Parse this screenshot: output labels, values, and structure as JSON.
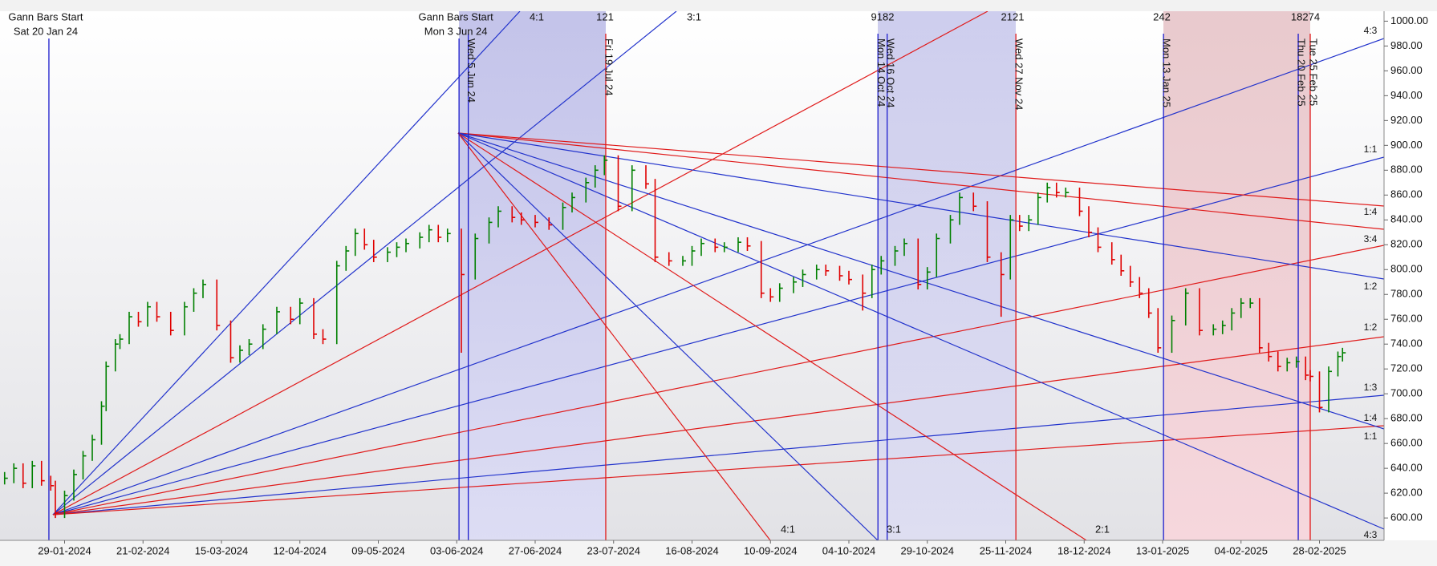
{
  "chart_data": {
    "type": "hlc",
    "x": [
      -13,
      -11,
      -9,
      -7,
      -5,
      -3,
      -2,
      0,
      2,
      4,
      6,
      8,
      9,
      11,
      12,
      14,
      16,
      18,
      20,
      23,
      26,
      28,
      30,
      33,
      36,
      38,
      40,
      43,
      46,
      49,
      51,
      54,
      56,
      59,
      61,
      63,
      65,
      67,
      70,
      72,
      74,
      77,
      79,
      81,
      83,
      86,
      89,
      92,
      94,
      97,
      99,
      102,
      105,
      108,
      110,
      113,
      115,
      117,
      120,
      123,
      126,
      128,
      131,
      134,
      136,
      138,
      141,
      143,
      146,
      148,
      151,
      153,
      155,
      158,
      160,
      163,
      165,
      168,
      170,
      173,
      175,
      177,
      180,
      182,
      185,
      187,
      189,
      192,
      194,
      197,
      200,
      203,
      205,
      207,
      209,
      211,
      213,
      215,
      217,
      220,
      222,
      224,
      227,
      229,
      231,
      233,
      235,
      237,
      240,
      243,
      246,
      249,
      251,
      253,
      255,
      257,
      259,
      261,
      263,
      265,
      267,
      269,
      270,
      272,
      274,
      276,
      277
    ],
    "high": [
      637,
      644,
      644,
      646,
      646,
      634,
      630,
      622,
      639,
      654,
      667,
      694,
      726,
      744,
      748,
      766,
      766,
      774,
      774,
      766,
      774,
      785,
      792,
      792,
      759,
      739,
      744,
      756,
      770,
      770,
      777,
      777,
      752,
      807,
      819,
      833,
      833,
      824,
      818,
      822,
      825,
      830,
      836,
      836,
      833,
      833,
      829,
      842,
      851,
      851,
      846,
      844,
      842,
      854,
      862,
      874,
      884,
      892,
      892,
      884,
      884,
      873,
      814,
      811,
      819,
      825,
      825,
      822,
      826,
      826,
      823,
      785,
      789,
      794,
      800,
      804,
      804,
      803,
      799,
      796,
      804,
      811,
      819,
      825,
      825,
      802,
      829,
      844,
      862,
      862,
      855,
      814,
      844,
      844,
      844,
      862,
      870,
      870,
      866,
      866,
      851,
      834,
      822,
      812,
      803,
      794,
      785,
      769,
      763,
      785,
      785,
      756,
      759,
      769,
      777,
      777,
      777,
      741,
      734,
      729,
      730,
      730,
      719,
      718,
      722,
      734,
      737
    ],
    "low": [
      627,
      628,
      624,
      624,
      626,
      622,
      600,
      600,
      614,
      631,
      646,
      659,
      686,
      718,
      736,
      740,
      754,
      754,
      758,
      747,
      747,
      766,
      777,
      751,
      725,
      725,
      731,
      736,
      748,
      756,
      756,
      744,
      740,
      740,
      799,
      811,
      816,
      806,
      806,
      810,
      814,
      817,
      822,
      822,
      822,
      733,
      792,
      821,
      834,
      838,
      836,
      834,
      832,
      832,
      846,
      854,
      866,
      876,
      847,
      847,
      865,
      806,
      803,
      803,
      803,
      811,
      814,
      814,
      814,
      815,
      777,
      774,
      774,
      781,
      786,
      792,
      795,
      791,
      788,
      767,
      777,
      796,
      803,
      811,
      784,
      784,
      794,
      821,
      836,
      847,
      806,
      762,
      792,
      831,
      831,
      836,
      854,
      858,
      858,
      843,
      826,
      814,
      804,
      795,
      786,
      777,
      761,
      733,
      733,
      755,
      747,
      747,
      748,
      751,
      761,
      769,
      733,
      726,
      718,
      718,
      721,
      711,
      710,
      685,
      685,
      714,
      726
    ],
    "close": [
      632,
      640,
      628,
      642,
      630,
      626,
      604,
      618,
      635,
      650,
      663,
      690,
      722,
      740,
      744,
      762,
      758,
      770,
      762,
      751,
      770,
      781,
      788,
      755,
      729,
      735,
      740,
      752,
      766,
      760,
      773,
      748,
      744,
      803,
      815,
      829,
      820,
      810,
      814,
      818,
      821,
      826,
      832,
      826,
      829,
      796,
      825,
      838,
      847,
      842,
      840,
      838,
      836,
      850,
      858,
      870,
      880,
      888,
      851,
      880,
      869,
      810,
      807,
      807,
      815,
      821,
      818,
      818,
      822,
      819,
      781,
      778,
      785,
      790,
      796,
      800,
      799,
      795,
      792,
      781,
      800,
      807,
      815,
      821,
      788,
      798,
      825,
      840,
      858,
      851,
      810,
      796,
      840,
      835,
      840,
      858,
      866,
      862,
      862,
      847,
      830,
      818,
      808,
      799,
      790,
      781,
      765,
      737,
      759,
      781,
      751,
      752,
      755,
      765,
      773,
      773,
      737,
      730,
      722,
      725,
      726,
      715,
      714,
      689,
      718,
      730,
      733
    ],
    "up_color": "#008000",
    "down_color": "#e00000",
    "xlim": [
      -14,
      286
    ],
    "ylim": [
      582,
      1008
    ],
    "xticks": [
      {
        "value": 0,
        "label": "29-01-2024"
      },
      {
        "value": 17,
        "label": "21-02-2024"
      },
      {
        "value": 34,
        "label": "15-03-2024"
      },
      {
        "value": 51,
        "label": "12-04-2024"
      },
      {
        "value": 68,
        "label": "09-05-2024"
      },
      {
        "value": 85,
        "label": "03-06-2024"
      },
      {
        "value": 102,
        "label": "27-06-2024"
      },
      {
        "value": 119,
        "label": "23-07-2024"
      },
      {
        "value": 136,
        "label": "16-08-2024"
      },
      {
        "value": 153,
        "label": "10-09-2024"
      },
      {
        "value": 170,
        "label": "04-10-2024"
      },
      {
        "value": 187,
        "label": "29-10-2024"
      },
      {
        "value": 204,
        "label": "25-11-2024"
      },
      {
        "value": 221,
        "label": "18-12-2024"
      },
      {
        "value": 238,
        "label": "13-01-2025"
      },
      {
        "value": 255,
        "label": "04-02-2025"
      },
      {
        "value": 272,
        "label": "28-02-2025"
      }
    ],
    "yticks": [
      {
        "value": 600,
        "label": "600.00"
      },
      {
        "value": 620,
        "label": "620.00"
      },
      {
        "value": 640,
        "label": "640.00"
      },
      {
        "value": 660,
        "label": "660.00"
      },
      {
        "value": 680,
        "label": "680.00"
      },
      {
        "value": 700,
        "label": "700.00"
      },
      {
        "value": 720,
        "label": "720.00"
      },
      {
        "value": 740,
        "label": "740.00"
      },
      {
        "value": 760,
        "label": "760.00"
      },
      {
        "value": 780,
        "label": "780.00"
      },
      {
        "value": 800,
        "label": "800.00"
      },
      {
        "value": 820,
        "label": "820.00"
      },
      {
        "value": 840,
        "label": "840.00"
      },
      {
        "value": 860,
        "label": "860.00"
      },
      {
        "value": 880,
        "label": "880.00"
      },
      {
        "value": 900,
        "label": "900.00"
      },
      {
        "value": 920,
        "label": "920.00"
      },
      {
        "value": 940,
        "label": "940.00"
      },
      {
        "value": 960,
        "label": "960.00"
      },
      {
        "value": 980,
        "label": "980.00"
      },
      {
        "value": 1000,
        "label": "1000.00"
      }
    ],
    "gann_starts": [
      {
        "x": -3.4,
        "title": "Gann Bars Start",
        "date": "Sat 20 Jan 24",
        "color": "#1c1ccc"
      },
      {
        "x": 85.5,
        "title": "Gann Bars Start",
        "date": "Mon 3 Jun 24",
        "color": "#1c1ccc"
      }
    ],
    "markers": [
      {
        "x": 87.5,
        "label": "Wed 5 Jun 24",
        "color": "#1c1ccc"
      },
      {
        "x": 117.3,
        "label": "Fri 19 Jul 24",
        "color": "#e01a1a"
      },
      {
        "x": 176.3,
        "label": "Mon 14 Oct 24",
        "color": "#1c1ccc"
      },
      {
        "x": 178.3,
        "label": "Wed 16 Oct 24",
        "color": "#1c1ccc"
      },
      {
        "x": 206.2,
        "label": "Wed 27 Nov 24",
        "color": "#e01a1a"
      },
      {
        "x": 238.2,
        "label": "Mon 13 Jan 25",
        "color": "#1c1ccc"
      },
      {
        "x": 267.4,
        "label": "Thu 20 Feb 25",
        "color": "#1c1ccc"
      },
      {
        "x": 270.0,
        "label": "Tue 25 Feb 25",
        "color": "#e01a1a"
      }
    ],
    "top_labels": [
      "4:1",
      "121",
      "3:1",
      "9182",
      "2121",
      "242",
      "18274"
    ],
    "right_labels": [
      "4:3",
      "1:1",
      "1:4",
      "3:4",
      "1:2",
      "1:2",
      "1:3",
      "1:4",
      "1:1",
      "4:3"
    ],
    "bottom_labels": [
      "4:1",
      "3:1",
      "2:1"
    ]
  }
}
